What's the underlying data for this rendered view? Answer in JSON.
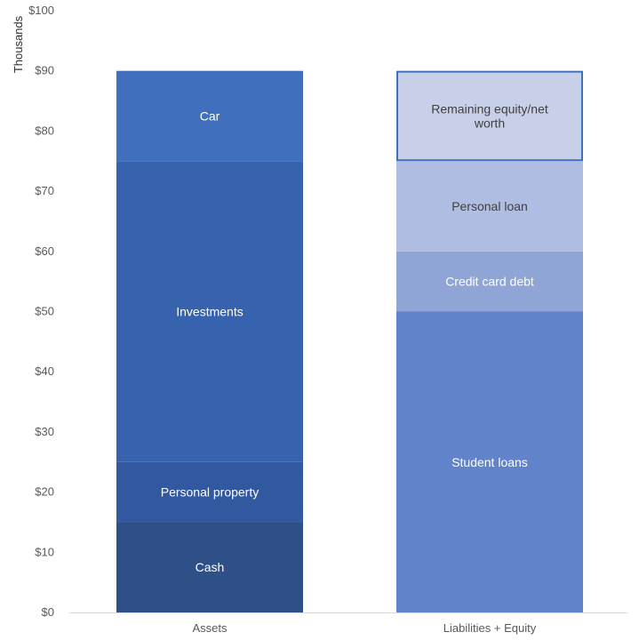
{
  "chart_data": {
    "type": "bar",
    "stacked": true,
    "title": "",
    "xlabel": "",
    "ylabel": "Thousands",
    "ylim": [
      0,
      100
    ],
    "yticks": [
      "$0",
      "$10",
      "$20",
      "$30",
      "$40",
      "$50",
      "$60",
      "$70",
      "$80",
      "$90",
      "$100"
    ],
    "grid": false,
    "legend": "none",
    "categories": [
      "Assets",
      "Liabilities + Equity"
    ],
    "bars": [
      {
        "category": "Assets",
        "segments": [
          {
            "label": "Cash",
            "value": 15,
            "color": "#2e4f87",
            "text_color": "#ffffff"
          },
          {
            "label": "Personal property",
            "value": 10,
            "color": "#3258a0",
            "text_color": "#ffffff"
          },
          {
            "label": "Investments",
            "value": 50,
            "color": "#3762ae",
            "text_color": "#ffffff"
          },
          {
            "label": "Car",
            "value": 15,
            "color": "#4070bd",
            "text_color": "#ffffff"
          }
        ]
      },
      {
        "category": "Liabilities + Equity",
        "segments": [
          {
            "label": "Student loans",
            "value": 50,
            "color": "#6183c9",
            "text_color": "#ffffff"
          },
          {
            "label": "Credit card debt",
            "value": 10,
            "color": "#8fa5d6",
            "text_color": "#ffffff"
          },
          {
            "label": "Personal loan",
            "value": 15,
            "color": "#afbde3",
            "text_color": "#404040"
          },
          {
            "label": "Remaining equity/net worth",
            "value": 15,
            "color": "#c8d0e9",
            "text_color": "#404040",
            "outline": "#3f70bd"
          }
        ]
      }
    ]
  }
}
